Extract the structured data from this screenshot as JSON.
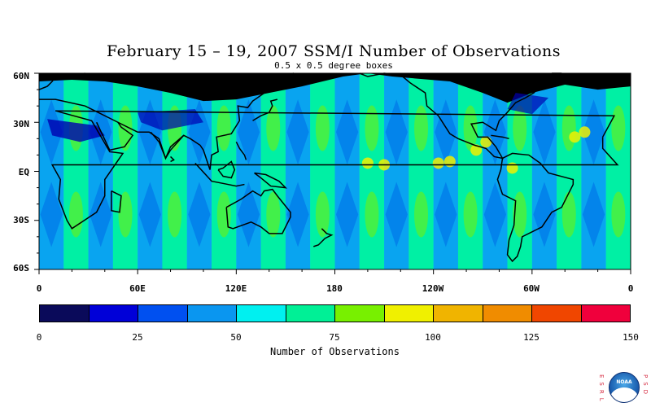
{
  "title": "February 15 – 19, 2007 SSM/I Number of Observations",
  "subtitle": "0.5 x 0.5 degree boxes",
  "lat_labels": [
    "60N",
    "30N",
    "EQ",
    "30S",
    "60S"
  ],
  "lon_labels": [
    "0",
    "60E",
    "120E",
    "180",
    "120W",
    "60W",
    "0"
  ],
  "colorbar": {
    "title": "Number of Observations",
    "ticks": [
      "0",
      "25",
      "50",
      "75",
      "100",
      "125",
      "150"
    ],
    "colors": [
      "#0a0a5a",
      "#0000d8",
      "#0050f0",
      "#0a96f0",
      "#00f0f0",
      "#00f096",
      "#78f000",
      "#f0f000",
      "#f0b400",
      "#f08c00",
      "#f04600",
      "#f0003c"
    ],
    "range": [
      0,
      150
    ]
  },
  "map": {
    "lat_range": [
      -60,
      60
    ],
    "lon_range": [
      0,
      360
    ],
    "field_colors": {
      "no_data": "#000000",
      "low": "#0a96f0",
      "mid": "#00f0f0",
      "high": "#00f096",
      "peak": "#78f000",
      "max": "#f0f000"
    }
  },
  "logo": {
    "name": "noaa-icon",
    "text": "NOAA",
    "left_text": "ESRL",
    "right_text": "PSD"
  }
}
